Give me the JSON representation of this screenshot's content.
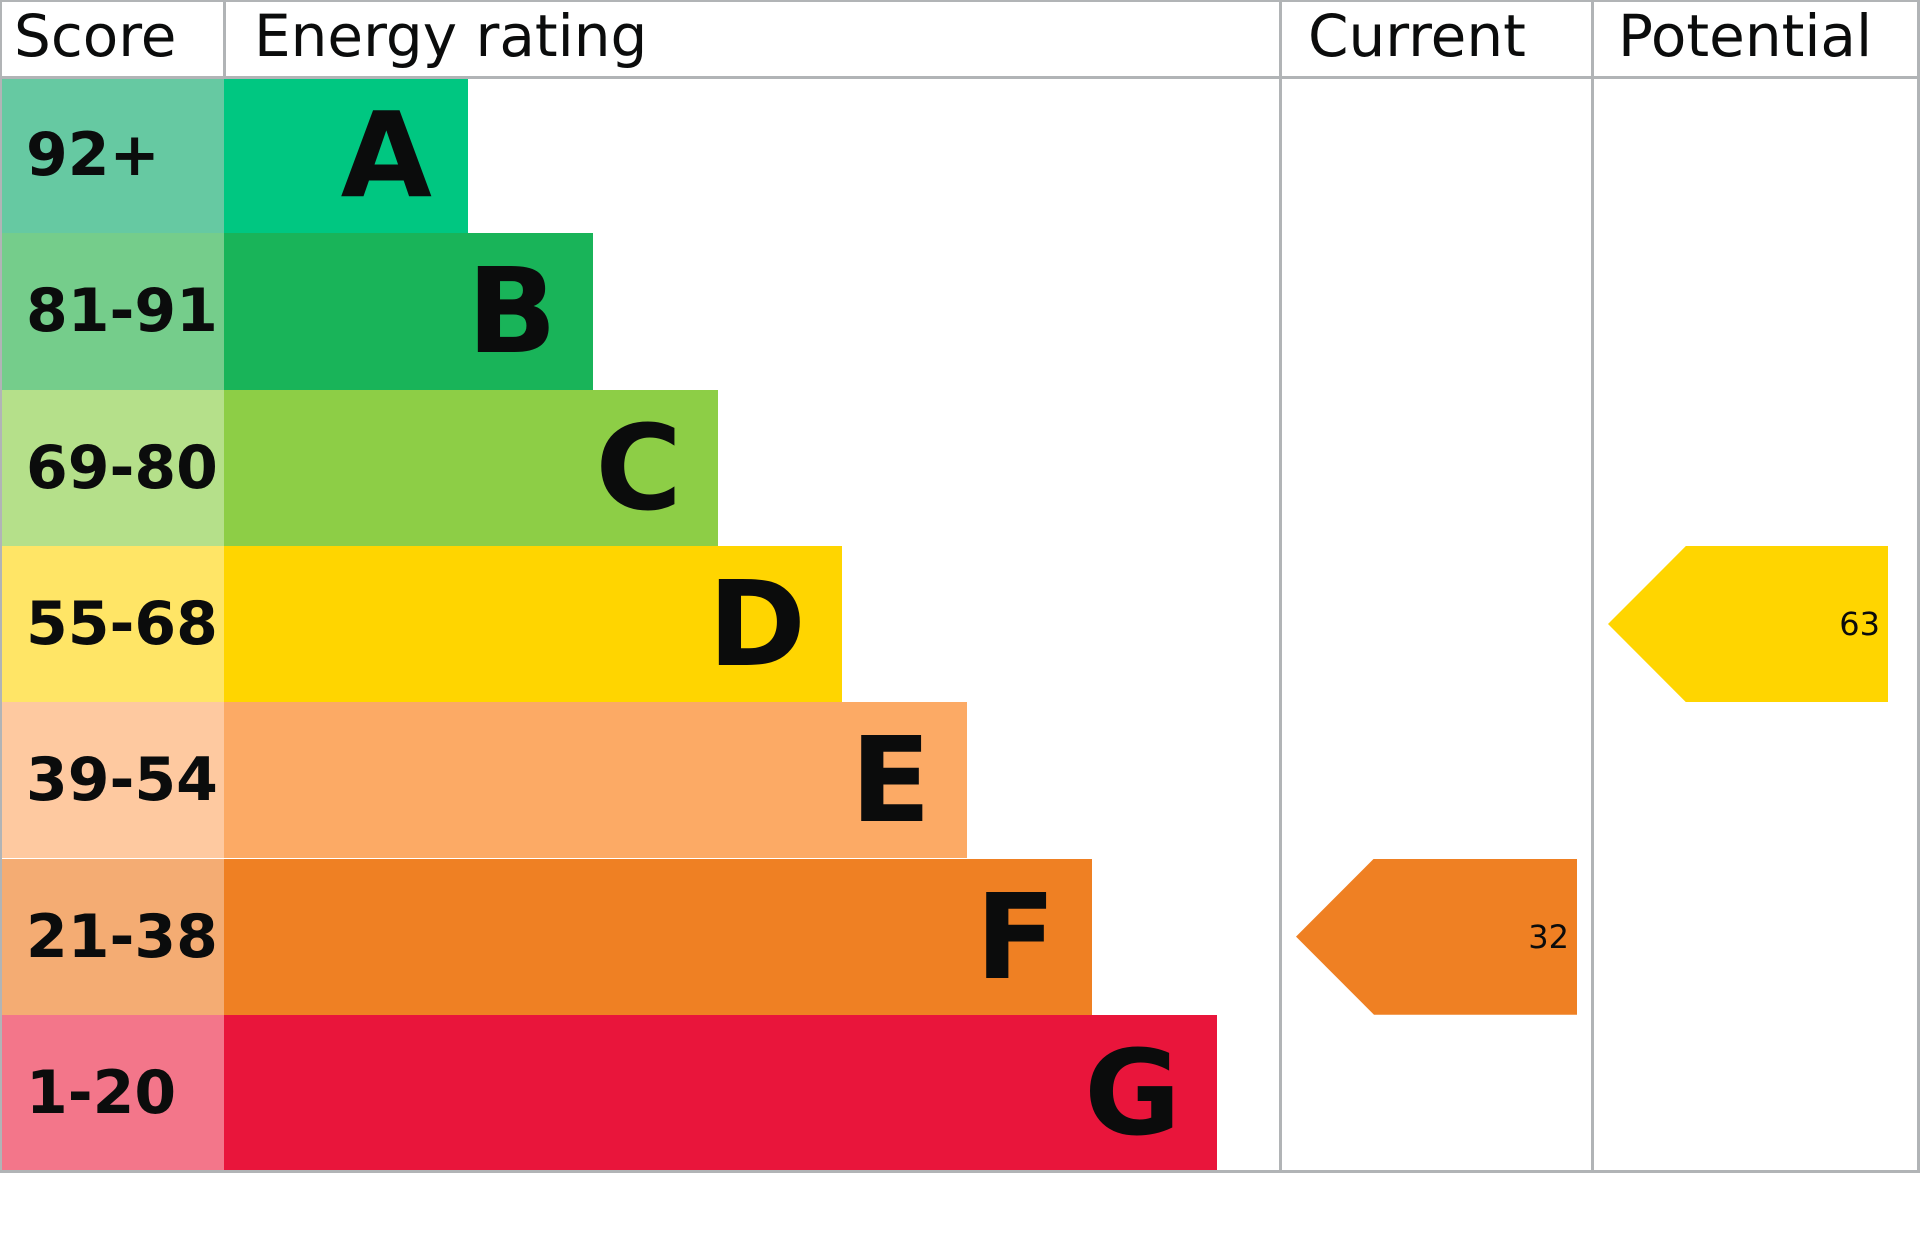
{
  "headers": {
    "score": "Score",
    "rating": "Energy rating",
    "current": "Current",
    "potential": "Potential"
  },
  "chart_data": {
    "type": "bar",
    "bands": [
      {
        "range": "92+",
        "letter": "A",
        "color": "#00c781",
        "score_color": "#66c9a2"
      },
      {
        "range": "81-91",
        "letter": "B",
        "color": "#19b459",
        "score_color": "#75cd8b"
      },
      {
        "range": "69-80",
        "letter": "C",
        "color": "#8dce46",
        "score_color": "#b5e08a"
      },
      {
        "range": "55-68",
        "letter": "D",
        "color": "#ffd500",
        "score_color": "#ffe566"
      },
      {
        "range": "39-54",
        "letter": "E",
        "color": "#fcaa65",
        "score_color": "#fec9a0"
      },
      {
        "range": "21-38",
        "letter": "F",
        "color": "#ef8023",
        "score_color": "#f4ac73"
      },
      {
        "range": "1-20",
        "letter": "G",
        "color": "#e9153b",
        "score_color": "#f3768a"
      }
    ],
    "current": {
      "value": "32",
      "band": "F",
      "color": "#ef8023"
    },
    "potential": {
      "value": "63",
      "band": "D",
      "color": "#ffd500"
    }
  }
}
